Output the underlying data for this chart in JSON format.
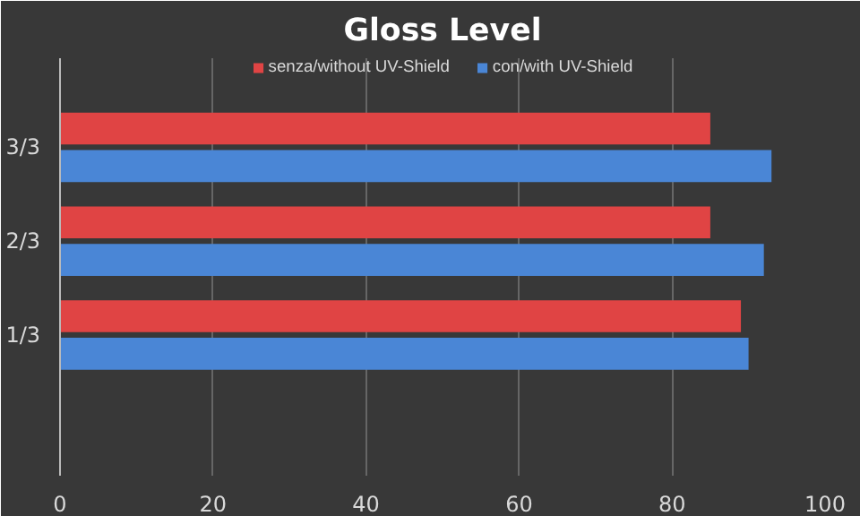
{
  "chart_data": {
    "type": "bar",
    "orientation": "horizontal",
    "title": "Gloss Level",
    "categories": [
      "3/3",
      "2/3",
      "1/3",
      null
    ],
    "series": [
      {
        "name": "senza/without UV-Shield",
        "color": "#e04444",
        "values": [
          85,
          85,
          89,
          null
        ]
      },
      {
        "name": "con/with UV-Shield",
        "color": "#4a86d6",
        "values": [
          93,
          92,
          90,
          null
        ]
      }
    ],
    "xlim": [
      0,
      100
    ],
    "xticks": [
      0,
      20,
      40,
      60,
      80,
      100
    ],
    "grid": "x",
    "legend": "top"
  }
}
